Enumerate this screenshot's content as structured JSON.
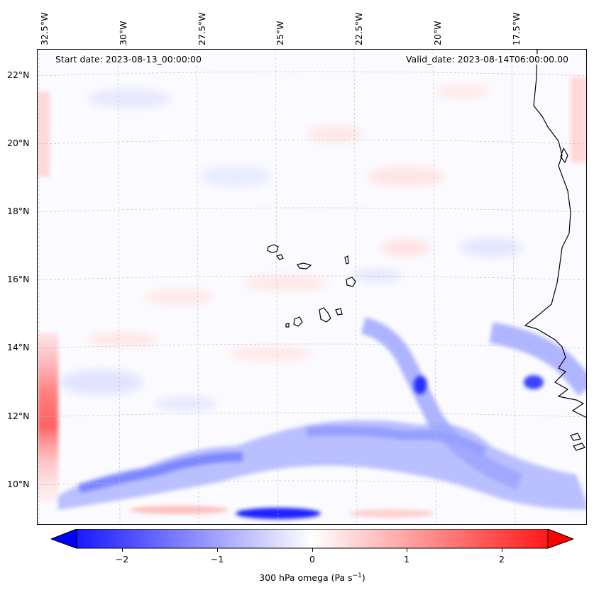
{
  "map": {
    "start_date": "Start date: 2023-08-13_00:00:00",
    "valid_date": "Valid_date: 2023-08-14T06:00:00.00",
    "lon_labels": [
      "32.5°W",
      "30°W",
      "27.5°W",
      "25°W",
      "22.5°W",
      "20°W",
      "17.5°W"
    ],
    "lat_labels": [
      "22°N",
      "20°N",
      "18°N",
      "16°N",
      "14°N",
      "12°N",
      "10°N"
    ],
    "gridlines": true,
    "features": [
      "Cape Verde islands",
      "West African coastline"
    ]
  },
  "colorbar": {
    "colormap": "bwr",
    "min": -2.6,
    "max": 2.6,
    "ticks": [
      "−2",
      "−1",
      "0",
      "1",
      "2"
    ],
    "tick_values": [
      -2,
      -1,
      0,
      1,
      2
    ],
    "label_main": "300 hPa omega (Pa s",
    "label_sup": "−1",
    "label_end": ")",
    "extend": "both",
    "colors": {
      "low": "#0000ff",
      "mid": "#ffffff",
      "high": "#ff0000"
    }
  }
}
